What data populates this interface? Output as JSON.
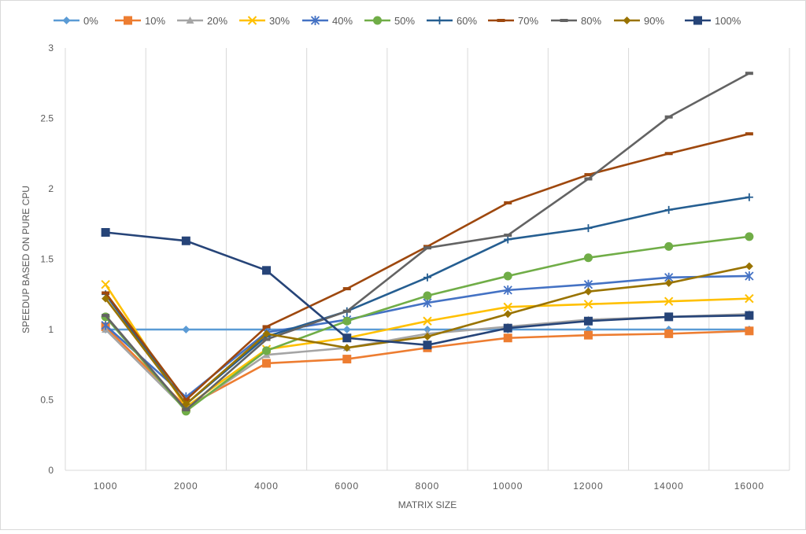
{
  "chart_data": {
    "type": "line",
    "title": "",
    "xlabel": "MATRIX SIZE",
    "ylabel": "SPEEDUP BASED ON PURE CPU",
    "categories": [
      "1000",
      "2000",
      "4000",
      "6000",
      "8000",
      "10000",
      "12000",
      "14000",
      "16000"
    ],
    "ylim": [
      0,
      3
    ],
    "yticks": [
      "0",
      "0.5",
      "1",
      "1.5",
      "2",
      "2.5",
      "3"
    ],
    "grid": "vertical",
    "legend": "top",
    "series": [
      {
        "name": "0%",
        "color": "#5B9BD5",
        "marker": "diamond",
        "values": [
          1.0,
          1.0,
          1.0,
          1.0,
          1.0,
          1.0,
          1.0,
          1.0,
          1.0
        ]
      },
      {
        "name": "10%",
        "color": "#ED7D31",
        "marker": "square",
        "values": [
          1.02,
          0.45,
          0.76,
          0.79,
          0.87,
          0.94,
          0.96,
          0.97,
          0.99
        ]
      },
      {
        "name": "20%",
        "color": "#A5A5A5",
        "marker": "triangle",
        "values": [
          1.0,
          0.43,
          0.82,
          0.87,
          0.97,
          1.02,
          1.07,
          1.09,
          1.11
        ]
      },
      {
        "name": "30%",
        "color": "#FFC000",
        "marker": "x",
        "values": [
          1.32,
          0.45,
          0.86,
          0.94,
          1.06,
          1.16,
          1.18,
          1.2,
          1.22
        ]
      },
      {
        "name": "40%",
        "color": "#4472C4",
        "marker": "star",
        "values": [
          1.03,
          0.52,
          0.98,
          1.07,
          1.19,
          1.28,
          1.32,
          1.37,
          1.38
        ]
      },
      {
        "name": "50%",
        "color": "#70AD47",
        "marker": "circle",
        "values": [
          1.09,
          0.42,
          0.85,
          1.06,
          1.24,
          1.38,
          1.51,
          1.59,
          1.66
        ]
      },
      {
        "name": "60%",
        "color": "#255E91",
        "marker": "plus",
        "values": [
          1.25,
          0.47,
          0.95,
          1.13,
          1.37,
          1.64,
          1.72,
          1.85,
          1.94
        ]
      },
      {
        "name": "70%",
        "color": "#9E480E",
        "marker": "dash",
        "values": [
          1.26,
          0.5,
          1.02,
          1.29,
          1.59,
          1.9,
          2.1,
          2.25,
          2.39
        ]
      },
      {
        "name": "80%",
        "color": "#636363",
        "marker": "dash",
        "values": [
          1.1,
          0.43,
          0.93,
          1.13,
          1.58,
          1.67,
          2.07,
          2.51,
          2.82
        ]
      },
      {
        "name": "90%",
        "color": "#997300",
        "marker": "diamond",
        "values": [
          1.22,
          0.47,
          0.97,
          0.87,
          0.95,
          1.11,
          1.27,
          1.33,
          1.45
        ]
      },
      {
        "name": "100%",
        "color": "#264478",
        "marker": "square",
        "values": [
          1.69,
          1.63,
          1.42,
          0.94,
          0.89,
          1.01,
          1.06,
          1.09,
          1.1
        ]
      }
    ]
  }
}
